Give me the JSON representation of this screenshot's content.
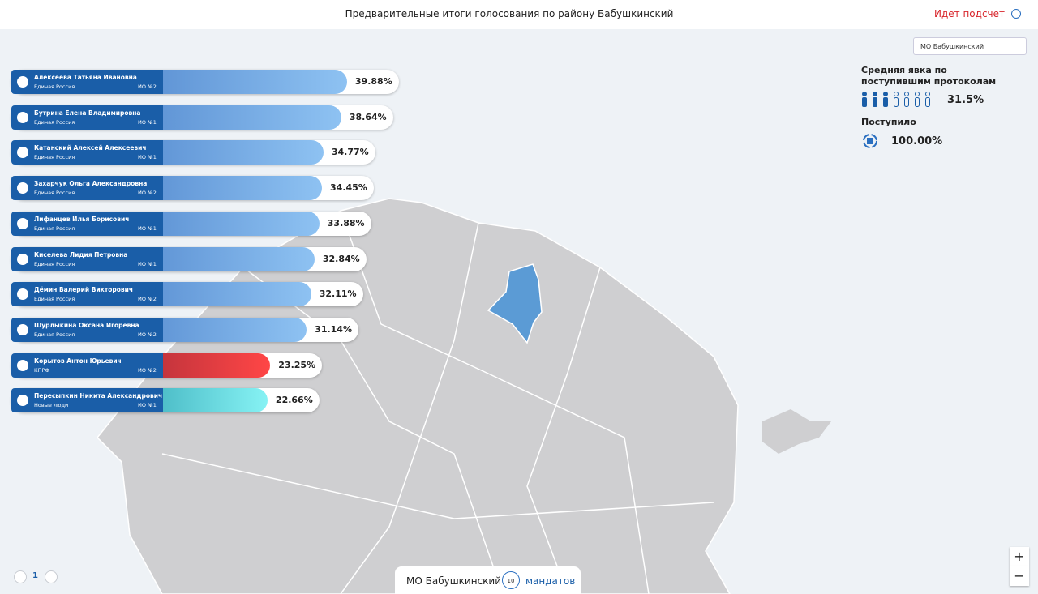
{
  "header": {
    "title": "Предварительные итоги голосования по району Бабушкинский",
    "status": "Идет подсчет"
  },
  "filter": {
    "selected": "МО Бабушкинский"
  },
  "candidates": [
    {
      "name": "Алексеева Татьяна Ивановна",
      "party": "Единая Россия",
      "district": "ИО №2",
      "value": 39.88,
      "label": "39.88%",
      "colors": [
        "#5a8fd2",
        "#8ec2f2"
      ]
    },
    {
      "name": "Бутрина Елена Владимировна",
      "party": "Единая Россия",
      "district": "ИО №1",
      "value": 38.64,
      "label": "38.64%",
      "colors": [
        "#5a8fd2",
        "#8ec2f2"
      ]
    },
    {
      "name": "Катанский Алексей Алексеевич",
      "party": "Единая Россия",
      "district": "ИО №1",
      "value": 34.77,
      "label": "34.77%",
      "colors": [
        "#5a8fd2",
        "#8ec2f2"
      ]
    },
    {
      "name": "Захарчук Ольга Александровна",
      "party": "Единая Россия",
      "district": "ИО №2",
      "value": 34.45,
      "label": "34.45%",
      "colors": [
        "#5a8fd2",
        "#8ec2f2"
      ]
    },
    {
      "name": "Лифанцев Илья Борисович",
      "party": "Единая Россия",
      "district": "ИО №1",
      "value": 33.88,
      "label": "33.88%",
      "colors": [
        "#5a8fd2",
        "#8ec2f2"
      ]
    },
    {
      "name": "Киселева Лидия Петровна",
      "party": "Единая Россия",
      "district": "ИО №1",
      "value": 32.84,
      "label": "32.84%",
      "colors": [
        "#5a8fd2",
        "#8ec2f2"
      ]
    },
    {
      "name": "Дёмин Валерий Викторович",
      "party": "Единая Россия",
      "district": "ИО №2",
      "value": 32.11,
      "label": "32.11%",
      "colors": [
        "#5a8fd2",
        "#8ec2f2"
      ]
    },
    {
      "name": "Шурлыкина Оксана Игоревна",
      "party": "Единая Россия",
      "district": "ИО №2",
      "value": 31.14,
      "label": "31.14%",
      "colors": [
        "#5a8fd2",
        "#8ec2f2"
      ]
    },
    {
      "name": "Корытов Антон Юрьевич",
      "party": "КПРФ",
      "district": "ИО №2",
      "value": 23.25,
      "label": "23.25%",
      "colors": [
        "#b5303a",
        "#ff4646"
      ]
    },
    {
      "name": "Пересыпкин Никита Александрович",
      "party": "Новые люди",
      "district": "ИО №1",
      "value": 22.66,
      "label": "22.66%",
      "colors": [
        "#3fb0bd",
        "#86f2f4"
      ]
    }
  ],
  "turnout": {
    "title": "Средняя явка по поступившим протоколам",
    "value": "31.5%",
    "received_label": "Поступило",
    "received_value": "100.00%"
  },
  "pagination": {
    "page": "1"
  },
  "footer": {
    "district": "МО Бабушкинский",
    "mandates": "10",
    "mandates_label": "мандатов"
  },
  "zoom": {
    "in": "+",
    "out": "−"
  }
}
